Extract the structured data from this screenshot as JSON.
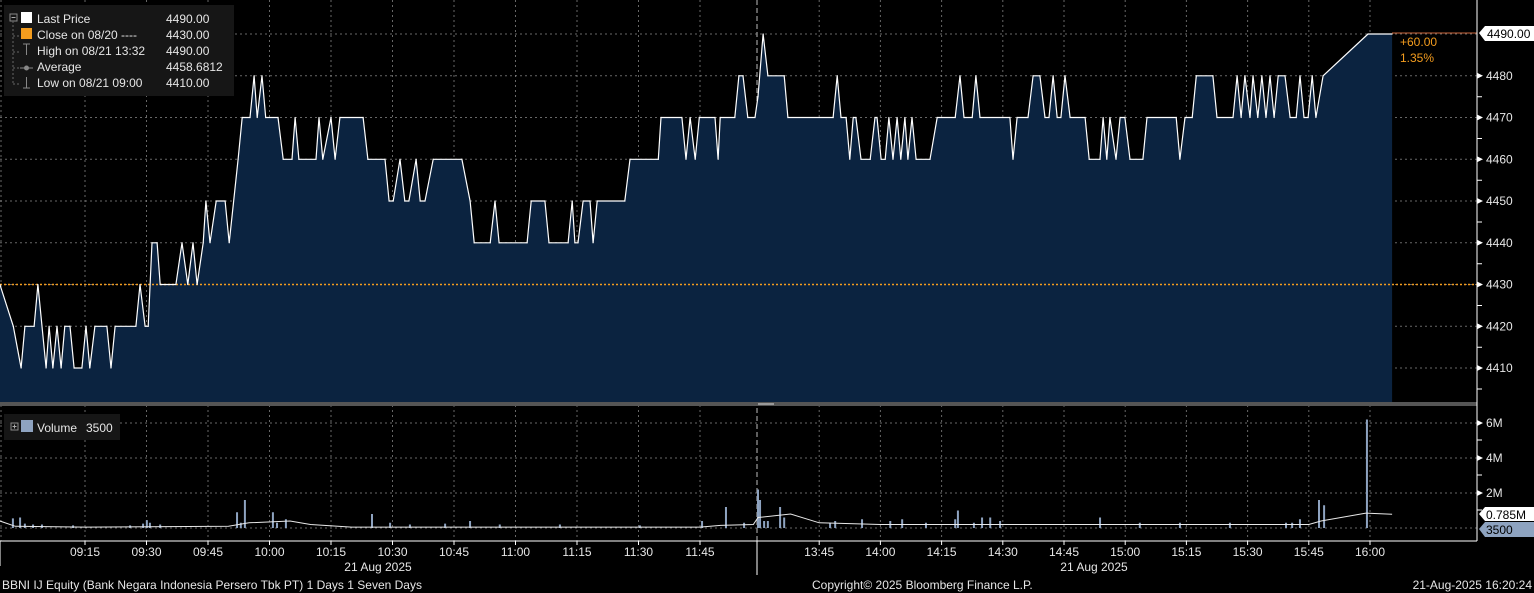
{
  "colors": {
    "background": "#000000",
    "area_fill": "#0b2340",
    "price_line": "#ffffff",
    "prev_close": "#f39c1e",
    "volume_bar": "#8ea3c0",
    "last_price_box": "#ffffff",
    "volume_box": "#8ea3c0"
  },
  "legend": {
    "items": [
      {
        "icon": "white-square-icon",
        "label": "Last Price",
        "value": "4490.00"
      },
      {
        "icon": "orange-square-icon",
        "label": "Close on 08/20 ----",
        "value": "4430.00"
      },
      {
        "icon": "high-marker-icon",
        "label": "High on 08/21 13:32",
        "value": "4490.00"
      },
      {
        "icon": "average-marker-icon",
        "label": "Average",
        "value": "4458.6812"
      },
      {
        "icon": "low-marker-icon",
        "label": "Low on 08/21 09:00",
        "value": "4410.00"
      }
    ]
  },
  "change": {
    "abs": "+60.00",
    "pct": "1.35%"
  },
  "volume_legend": {
    "label": "Volume",
    "value": "3500"
  },
  "footer": {
    "security": "BBNI IJ Equity (Bank Negara Indonesia Persero Tbk PT) 1 Days 1 Seven Days",
    "copyright": "Copyright© 2025 Bloomberg Finance L.P.",
    "timestamp": "21-Aug-2025 16:20:24"
  },
  "chart_data": [
    {
      "type": "area",
      "series_name": "Last Price",
      "ylim": [
        4403,
        4494
      ],
      "y_ticks": [
        "4410",
        "4420",
        "4430",
        "4440",
        "4450",
        "4460",
        "4470",
        "4480"
      ],
      "last_label": "4490.00",
      "prev_close": 4430,
      "grid": true,
      "legend": "top-left",
      "x_ticks": [
        "09:15",
        "09:30",
        "09:45",
        "10:00",
        "10:15",
        "10:30",
        "10:45",
        "11:00",
        "11:15",
        "11:30",
        "11:45",
        "13:45",
        "14:00",
        "14:15",
        "14:30",
        "14:45",
        "15:00",
        "15:15",
        "15:30",
        "15:45",
        "16:00"
      ],
      "date_labels": [
        "21 Aug 2025",
        "21 Aug 2025"
      ],
      "sessions": [
        [
          "08:54:15",
          "12:00:00"
        ],
        [
          "13:30:00",
          "16:05:30"
        ]
      ],
      "points": [
        [
          "08:54:15",
          4430
        ],
        [
          "08:57:30",
          4420
        ],
        [
          "08:59:25",
          4410
        ],
        [
          "09:00:20",
          4420
        ],
        [
          "09:02:35",
          4420
        ],
        [
          "09:03:30",
          4430
        ],
        [
          "09:05:30",
          4410
        ],
        [
          "09:06:15",
          4420
        ],
        [
          "09:07:10",
          4410
        ],
        [
          "09:08:10",
          4420
        ],
        [
          "09:09:10",
          4410
        ],
        [
          "09:10:05",
          4420
        ],
        [
          "09:11:20",
          4420
        ],
        [
          "09:12:20",
          4410
        ],
        [
          "09:14:15",
          4410
        ],
        [
          "09:15:15",
          4420
        ],
        [
          "09:16:10",
          4410
        ],
        [
          "09:17:25",
          4420
        ],
        [
          "09:20:20",
          4420
        ],
        [
          "09:21:20",
          4410
        ],
        [
          "09:22:20",
          4420
        ],
        [
          "09:27:25",
          4420
        ],
        [
          "09:28:25",
          4430
        ],
        [
          "09:29:40",
          4420
        ],
        [
          "09:30:25",
          4420
        ],
        [
          "09:31:20",
          4440
        ],
        [
          "09:32:35",
          4440
        ],
        [
          "09:33:20",
          4430
        ],
        [
          "09:37:10",
          4430
        ],
        [
          "09:38:40",
          4440
        ],
        [
          "09:40:05",
          4430
        ],
        [
          "09:41:20",
          4440
        ],
        [
          "09:42:20",
          4430
        ],
        [
          "09:43:50",
          4440
        ],
        [
          "09:44:30",
          4450
        ],
        [
          "09:45:30",
          4440
        ],
        [
          "09:47:00",
          4450
        ],
        [
          "09:49:10",
          4450
        ],
        [
          "09:50:10",
          4440
        ],
        [
          "09:52:20",
          4460
        ],
        [
          "09:53:20",
          4470
        ],
        [
          "09:55:15",
          4470
        ],
        [
          "09:56:15",
          4480
        ],
        [
          "09:57:00",
          4470
        ],
        [
          "09:58:10",
          4480
        ],
        [
          "09:59:05",
          4470
        ],
        [
          "10:02:05",
          4470
        ],
        [
          "10:03:20",
          4460
        ],
        [
          "10:05:30",
          4460
        ],
        [
          "10:06:15",
          4470
        ],
        [
          "10:07:10",
          4460
        ],
        [
          "10:11:20",
          4460
        ],
        [
          "10:12:05",
          4470
        ],
        [
          "10:13:00",
          4460
        ],
        [
          "10:15:00",
          4470
        ],
        [
          "10:16:00",
          4460
        ],
        [
          "10:17:10",
          4470
        ],
        [
          "10:22:50",
          4470
        ],
        [
          "10:24:00",
          4460
        ],
        [
          "10:28:10",
          4460
        ],
        [
          "10:29:10",
          4450
        ],
        [
          "10:30:10",
          4450
        ],
        [
          "10:31:50",
          4460
        ],
        [
          "10:33:00",
          4450
        ],
        [
          "10:34:00",
          4450
        ],
        [
          "10:35:45",
          4460
        ],
        [
          "10:36:45",
          4450
        ],
        [
          "10:37:55",
          4450
        ],
        [
          "10:39:55",
          4460
        ],
        [
          "10:46:55",
          4460
        ],
        [
          "10:48:55",
          4450
        ],
        [
          "10:49:55",
          4440
        ],
        [
          "10:53:50",
          4440
        ],
        [
          "10:55:00",
          4450
        ],
        [
          "10:56:00",
          4440
        ],
        [
          "11:02:50",
          4440
        ],
        [
          "11:03:50",
          4450
        ],
        [
          "11:07:10",
          4450
        ],
        [
          "11:08:10",
          4440
        ],
        [
          "11:12:50",
          4440
        ],
        [
          "11:13:50",
          4450
        ],
        [
          "11:14:30",
          4440
        ],
        [
          "11:15:15",
          4440
        ],
        [
          "11:16:30",
          4450
        ],
        [
          "11:18:10",
          4450
        ],
        [
          "11:18:55",
          4440
        ],
        [
          "11:19:55",
          4450
        ],
        [
          "11:26:40",
          4450
        ],
        [
          "11:27:55",
          4460
        ],
        [
          "11:34:50",
          4460
        ],
        [
          "11:35:30",
          4470
        ],
        [
          "11:40:35",
          4470
        ],
        [
          "11:41:35",
          4460
        ],
        [
          "11:42:35",
          4470
        ],
        [
          "11:43:50",
          4460
        ],
        [
          "11:44:50",
          4470
        ],
        [
          "11:48:40",
          4470
        ],
        [
          "11:49:25",
          4460
        ],
        [
          "11:49:55",
          4470
        ],
        [
          "11:53:30",
          4470
        ],
        [
          "11:54:30",
          4480
        ],
        [
          "11:55:30",
          4480
        ],
        [
          "11:56:40",
          4470
        ],
        [
          "11:58:25",
          4470
        ],
        [
          "13:30:00",
          4475
        ],
        [
          "13:31:15",
          4490
        ],
        [
          "13:32:25",
          4480
        ],
        [
          "13:36:25",
          4480
        ],
        [
          "13:37:20",
          4470
        ],
        [
          "13:48:25",
          4470
        ],
        [
          "13:49:25",
          4480
        ],
        [
          "13:50:20",
          4470
        ],
        [
          "13:51:35",
          4470
        ],
        [
          "13:52:30",
          4460
        ],
        [
          "13:53:20",
          4470
        ],
        [
          "13:54:00",
          4470
        ],
        [
          "13:55:15",
          4460
        ],
        [
          "13:57:30",
          4460
        ],
        [
          "13:58:40",
          4470
        ],
        [
          "13:59:10",
          4470
        ],
        [
          "14:00:10",
          4460
        ],
        [
          "14:01:10",
          4460
        ],
        [
          "14:02:05",
          4470
        ],
        [
          "14:03:05",
          4460
        ],
        [
          "14:04:05",
          4470
        ],
        [
          "14:05:00",
          4460
        ],
        [
          "14:06:00",
          4470
        ],
        [
          "14:06:45",
          4460
        ],
        [
          "14:07:45",
          4470
        ],
        [
          "14:08:45",
          4460
        ],
        [
          "14:12:10",
          4460
        ],
        [
          "14:13:55",
          4470
        ],
        [
          "14:18:20",
          4470
        ],
        [
          "14:19:30",
          4480
        ],
        [
          "14:20:30",
          4470
        ],
        [
          "14:22:30",
          4470
        ],
        [
          "14:23:25",
          4480
        ],
        [
          "14:24:25",
          4470
        ],
        [
          "14:31:45",
          4470
        ],
        [
          "14:32:30",
          4460
        ],
        [
          "14:33:30",
          4470
        ],
        [
          "14:36:10",
          4470
        ],
        [
          "14:37:25",
          4480
        ],
        [
          "14:39:05",
          4480
        ],
        [
          "14:40:20",
          4470
        ],
        [
          "14:41:20",
          4470
        ],
        [
          "14:42:20",
          4480
        ],
        [
          "14:43:20",
          4470
        ],
        [
          "14:44:15",
          4470
        ],
        [
          "14:45:15",
          4480
        ],
        [
          "14:46:30",
          4470
        ],
        [
          "14:50:10",
          4470
        ],
        [
          "14:51:10",
          4460
        ],
        [
          "14:53:50",
          4460
        ],
        [
          "14:54:35",
          4470
        ],
        [
          "14:55:30",
          4460
        ],
        [
          "14:56:15",
          4470
        ],
        [
          "14:57:45",
          4460
        ],
        [
          "14:58:45",
          4470
        ],
        [
          "14:59:55",
          4470
        ],
        [
          "15:01:10",
          4460
        ],
        [
          "15:04:20",
          4460
        ],
        [
          "15:05:20",
          4470
        ],
        [
          "15:12:30",
          4470
        ],
        [
          "15:13:25",
          4460
        ],
        [
          "15:14:40",
          4470
        ],
        [
          "15:16:25",
          4470
        ],
        [
          "15:17:25",
          4480
        ],
        [
          "15:21:30",
          4480
        ],
        [
          "15:22:30",
          4470
        ],
        [
          "15:26:25",
          4470
        ],
        [
          "15:27:25",
          4480
        ],
        [
          "15:28:25",
          4470
        ],
        [
          "15:29:20",
          4480
        ],
        [
          "15:30:35",
          4470
        ],
        [
          "15:31:20",
          4480
        ],
        [
          "15:32:30",
          4470
        ],
        [
          "15:33:30",
          4480
        ],
        [
          "15:34:30",
          4470
        ],
        [
          "15:35:30",
          4480
        ],
        [
          "15:36:30",
          4470
        ],
        [
          "15:37:30",
          4480
        ],
        [
          "15:39:10",
          4480
        ],
        [
          "15:40:25",
          4470
        ],
        [
          "15:41:55",
          4470
        ],
        [
          "15:42:50",
          4480
        ],
        [
          "15:43:50",
          4470
        ],
        [
          "15:44:50",
          4470
        ],
        [
          "15:45:50",
          4480
        ],
        [
          "15:46:45",
          4470
        ],
        [
          "15:48:30",
          4480
        ],
        [
          "15:59:30",
          4490
        ],
        [
          "16:05:25",
          4490
        ]
      ]
    },
    {
      "type": "bar",
      "series_name": "Volume",
      "unit": "M",
      "ylim": [
        0,
        6.4
      ],
      "y_ticks": [
        "2M",
        "4M",
        "6M"
      ],
      "last_labels": [
        "0.785M",
        "3500"
      ],
      "bars": [
        [
          "08:57:25",
          0.55
        ],
        [
          "08:59:10",
          0.6
        ],
        [
          "09:00:20",
          0.25
        ],
        [
          "09:02:20",
          0.2
        ],
        [
          "09:04:30",
          0.2
        ],
        [
          "09:12:05",
          0.15
        ],
        [
          "09:26:00",
          0.15
        ],
        [
          "09:29:10",
          0.25
        ],
        [
          "09:30:05",
          0.45
        ],
        [
          "09:30:50",
          0.3
        ],
        [
          "09:33:20",
          0.2
        ],
        [
          "09:52:05",
          0.9
        ],
        [
          "09:53:00",
          0.3
        ],
        [
          "09:54:00",
          1.6
        ],
        [
          "10:00:50",
          0.9
        ],
        [
          "10:01:50",
          0.3
        ],
        [
          "10:04:00",
          0.5
        ],
        [
          "10:25:00",
          0.8
        ],
        [
          "10:29:25",
          0.3
        ],
        [
          "10:34:15",
          0.2
        ],
        [
          "10:42:50",
          0.25
        ],
        [
          "10:48:55",
          0.4
        ],
        [
          "10:56:10",
          0.2
        ],
        [
          "11:10:50",
          0.2
        ],
        [
          "11:30:20",
          0.15
        ],
        [
          "11:45:30",
          0.4
        ],
        [
          "11:51:20",
          1.2
        ],
        [
          "11:55:45",
          0.3
        ],
        [
          "13:30:00",
          2.2
        ],
        [
          "13:30:30",
          1.6
        ],
        [
          "13:31:30",
          0.4
        ],
        [
          "13:32:25",
          0.4
        ],
        [
          "13:35:25",
          1.2
        ],
        [
          "13:36:25",
          0.6
        ],
        [
          "13:47:40",
          0.3
        ],
        [
          "13:48:55",
          0.4
        ],
        [
          "13:55:30",
          0.5
        ],
        [
          "14:02:25",
          0.4
        ],
        [
          "14:05:20",
          0.5
        ],
        [
          "14:11:10",
          0.3
        ],
        [
          "14:18:20",
          0.5
        ],
        [
          "14:19:00",
          1.0
        ],
        [
          "14:22:55",
          0.3
        ],
        [
          "14:24:55",
          0.6
        ],
        [
          "14:26:55",
          0.6
        ],
        [
          "14:29:20",
          0.4
        ],
        [
          "14:53:50",
          0.6
        ],
        [
          "15:03:35",
          0.3
        ],
        [
          "15:13:25",
          0.3
        ],
        [
          "15:25:40",
          0.3
        ],
        [
          "15:39:25",
          0.3
        ],
        [
          "15:40:55",
          0.3
        ],
        [
          "15:42:50",
          0.5
        ],
        [
          "15:47:30",
          1.6
        ],
        [
          "15:48:45",
          1.3
        ],
        [
          "15:59:15",
          6.2
        ]
      ],
      "average_line": [
        [
          "08:54:15",
          0.4
        ],
        [
          "08:58:00",
          0.1
        ],
        [
          "09:15:00",
          0.05
        ],
        [
          "09:50:00",
          0.1
        ],
        [
          "09:55:00",
          0.3
        ],
        [
          "10:05:00",
          0.4
        ],
        [
          "10:10:00",
          0.2
        ],
        [
          "10:20:00",
          0.05
        ],
        [
          "11:45:00",
          0.05
        ],
        [
          "11:50:00",
          0.15
        ],
        [
          "11:58:00",
          0.2
        ],
        [
          "13:30:00",
          0.6
        ],
        [
          "13:38:00",
          0.8
        ],
        [
          "13:45:00",
          0.3
        ],
        [
          "14:00:00",
          0.2
        ],
        [
          "15:45:00",
          0.2
        ],
        [
          "15:48:00",
          0.4
        ],
        [
          "15:59:00",
          0.85
        ],
        [
          "16:05:25",
          0.785
        ]
      ]
    }
  ]
}
